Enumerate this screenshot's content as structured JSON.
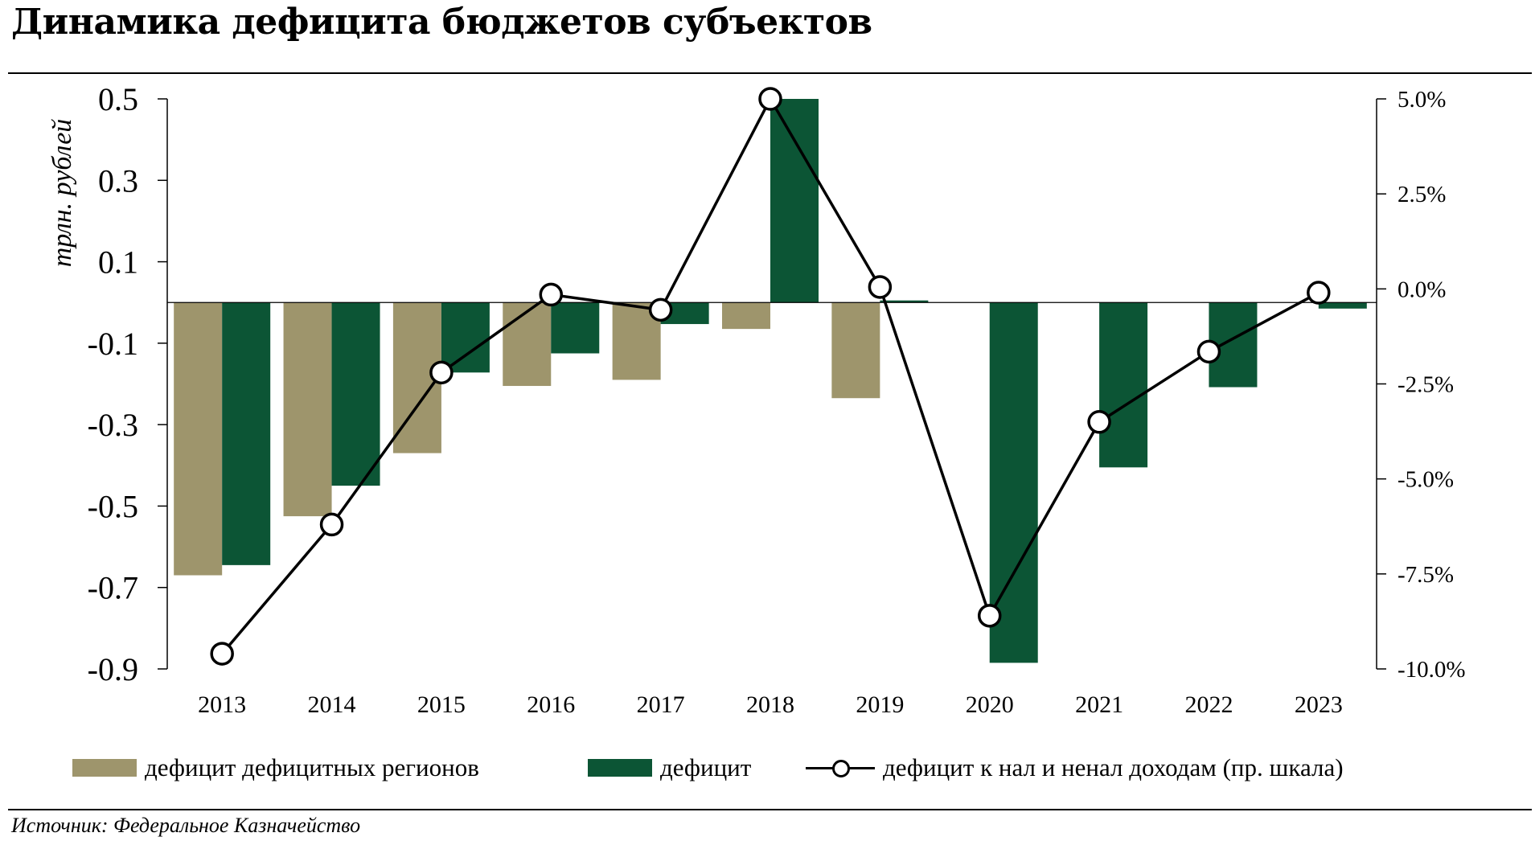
{
  "title": "Динамика дефицита бюджетов субъектов",
  "source": "Источник:  Федеральное Казначейство",
  "colors": {
    "tan": "#9e956c",
    "green": "#0c5535",
    "line": "#000000"
  },
  "chart_data": {
    "type": "bar",
    "categories": [
      "2013",
      "2014",
      "2015",
      "2016",
      "2017",
      "2018",
      "2019",
      "2020",
      "2021",
      "2022",
      "2023"
    ],
    "ylabel": "трлн. рублей",
    "ylim": [
      -0.9,
      0.5
    ],
    "yticks": [
      "0.5",
      "0.3",
      "0.1",
      "-0.1",
      "-0.3",
      "-0.5",
      "-0.7",
      "-0.9"
    ],
    "y2lim": [
      -10.0,
      5.0
    ],
    "y2ticks": [
      "5.0%",
      "2.5%",
      "0.0%",
      "-2.5%",
      "-5.0%",
      "-7.5%",
      "-10.0%"
    ],
    "series": [
      {
        "name": "дефицит дефицитных регионов",
        "type": "bar",
        "color": "#9e956c",
        "values": [
          -0.67,
          -0.525,
          -0.37,
          -0.205,
          -0.19,
          -0.065,
          -0.235,
          null,
          null,
          null,
          null
        ]
      },
      {
        "name": "дефицит",
        "type": "bar",
        "color": "#0c5535",
        "values": [
          -0.645,
          -0.45,
          -0.172,
          -0.125,
          -0.053,
          0.5,
          0.005,
          -0.885,
          -0.405,
          -0.208,
          -0.015
        ]
      },
      {
        "name": "дефицит к нал и ненал доходам (пр. шкала)",
        "type": "line",
        "axis": "right",
        "color": "#000000",
        "values": [
          -9.6,
          -6.2,
          -2.2,
          -0.15,
          -0.55,
          5.0,
          0.05,
          -8.6,
          -3.5,
          -1.65,
          -0.1
        ]
      }
    ],
    "legend": "bottom"
  }
}
